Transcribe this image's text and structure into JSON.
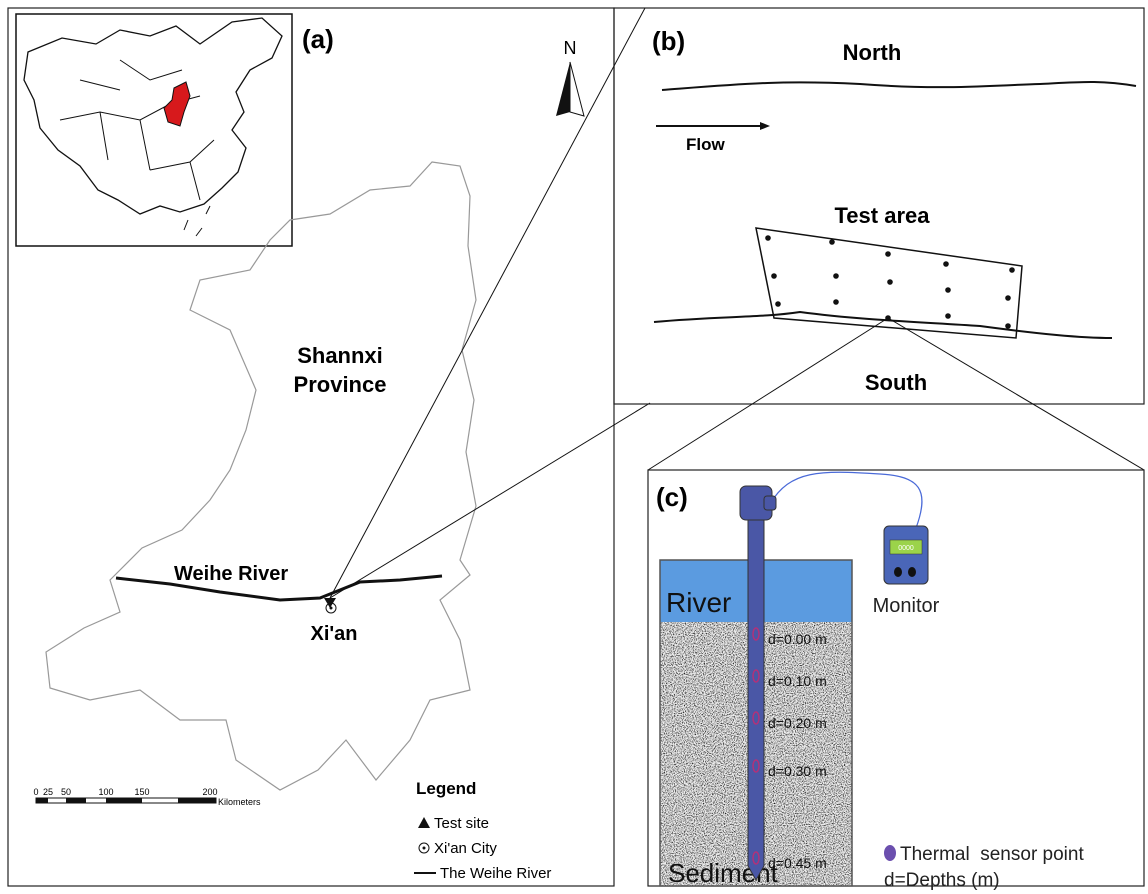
{
  "panel_a": {
    "label": "(a)",
    "north": "N",
    "province": [
      "Shannxi",
      "Province"
    ],
    "river": "Weihe River",
    "city": "Xi'an",
    "legend": {
      "title": "Legend",
      "items": [
        "Test site",
        "Xi'an City",
        "The Weihe River"
      ]
    },
    "scale": {
      "ticks": [
        "0",
        "25",
        "50",
        "100",
        "150",
        "200"
      ],
      "unit": "Kilometers"
    }
  },
  "panel_b": {
    "label": "(b)",
    "north": "North",
    "flow": "Flow",
    "test_area": "Test area",
    "south": "South"
  },
  "panel_c": {
    "label": "(c)",
    "river": "River",
    "sediment": "Sediment",
    "monitor": "Monitor",
    "display": "0000",
    "depths": [
      "d=0.00 m",
      "d=0.10 m",
      "d=0.20 m",
      "d=0.30 m",
      "d=0.45 m"
    ],
    "sensor_legend": "Thermal  sensor point",
    "depth_legend": "d=Depths (m)"
  }
}
